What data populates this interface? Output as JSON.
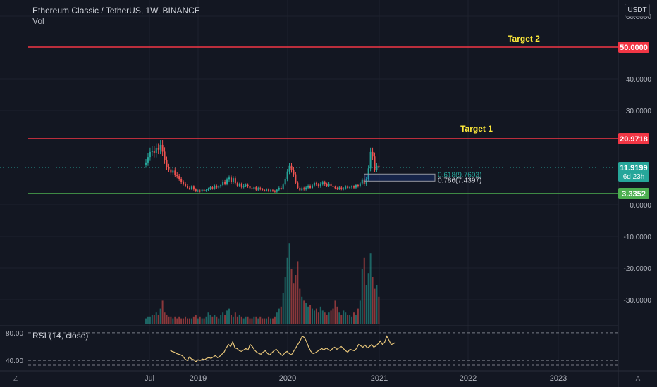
{
  "header": {
    "symbol_title": "Ethereum Classic / TetherUS, 1W, BINANCE",
    "volume_label": "Vol",
    "currency": "USDT"
  },
  "rsi": {
    "label": "RSI (14, close)",
    "upper": "80.00",
    "lower": "40.00"
  },
  "footer": {
    "left_corner": "Z",
    "right_corner": "A"
  },
  "colors": {
    "background": "#131722",
    "grid": "#1e222d",
    "up": "#26a69a",
    "down": "#ef5350",
    "resistance": "#f23645",
    "support": "#4caf50",
    "annotation": "#ffeb3b",
    "rsi_line": "#e8c67a",
    "fib_box": "#2962ff"
  },
  "chart_data": {
    "type": "candlestick",
    "title": "Ethereum Classic / TetherUS, 1W, BINANCE",
    "y_axis_ticks": [
      "60.0000",
      "40.0000",
      "30.0000",
      "0.0000",
      "-10.0000",
      "-20.0000",
      "-30.0000"
    ],
    "x_axis_ticks": [
      "Jul",
      "2019",
      "2020",
      "2021",
      "2022",
      "2023"
    ],
    "price_ylim": [
      -36,
      62
    ],
    "horizontal_lines": [
      {
        "name": "Target 2",
        "label": "Target 2",
        "value": 50.0,
        "value_label": "50.0000",
        "color": "resistance"
      },
      {
        "name": "Target 1",
        "label": "Target 1",
        "value": 20.9718,
        "value_label": "20.9718",
        "color": "resistance"
      },
      {
        "name": "Support",
        "label": "",
        "value": 3.3352,
        "value_label": "3.3352",
        "color": "support"
      }
    ],
    "last_price": {
      "value": 11.9199,
      "value_label": "11.9199",
      "countdown": "6d 23h"
    },
    "fibonacci": [
      {
        "label": "0.618(9.7693)",
        "value": 9.7693
      },
      {
        "label": "0.786(7.4397)",
        "value": 7.4397
      }
    ],
    "weekly_close": [
      13.5,
      15.2,
      16.8,
      17.2,
      16.4,
      18.1,
      17.5,
      19.0,
      16.9,
      14.2,
      12.1,
      11.3,
      10.2,
      10.9,
      9.6,
      9.1,
      8.2,
      7.1,
      6.5,
      5.9,
      5.2,
      4.9,
      5.6,
      4.7,
      4.1,
      4.3,
      4.0,
      4.6,
      4.2,
      4.5,
      4.9,
      5.4,
      5.0,
      5.8,
      5.3,
      5.6,
      6.1,
      7.2,
      6.6,
      7.9,
      8.6,
      7.1,
      8.4,
      6.8,
      5.9,
      6.4,
      5.5,
      5.9,
      6.2,
      5.7,
      5.1,
      4.8,
      5.4,
      4.6,
      5.1,
      4.8,
      4.5,
      4.3,
      4.7,
      4.1,
      4.4,
      4.2,
      3.9,
      4.6,
      5.2,
      4.9,
      6.3,
      8.1,
      10.6,
      12.4,
      11.1,
      9.7,
      6.9,
      5.2,
      4.4,
      5.1,
      4.7,
      5.3,
      5.8,
      5.2,
      6.0,
      6.8,
      6.3,
      5.7,
      6.5,
      7.0,
      6.4,
      5.9,
      6.6,
      5.8,
      5.5,
      5.1,
      4.9,
      5.3,
      4.8,
      5.0,
      5.6,
      5.2,
      5.4,
      5.6,
      5.3,
      6.1,
      5.8,
      6.7,
      7.8,
      6.4,
      8.2,
      11.6,
      16.8,
      15.4,
      11.2,
      12.4,
      11.9
    ],
    "weekly_volume": [
      3,
      4,
      4,
      5,
      5,
      6,
      5,
      8,
      12,
      6,
      5,
      4,
      4,
      3,
      4,
      3,
      4,
      3,
      3,
      4,
      3,
      3,
      3,
      4,
      5,
      3,
      4,
      3,
      3,
      4,
      6,
      5,
      4,
      5,
      4,
      3,
      5,
      6,
      5,
      7,
      8,
      5,
      4,
      6,
      4,
      5,
      4,
      3,
      4,
      4,
      3,
      3,
      4,
      4,
      3,
      4,
      3,
      3,
      3,
      4,
      3,
      3,
      4,
      6,
      8,
      9,
      16,
      24,
      34,
      41,
      28,
      21,
      25,
      32,
      18,
      14,
      12,
      11,
      9,
      10,
      8,
      7,
      8,
      6,
      9,
      7,
      6,
      5,
      6,
      7,
      8,
      12,
      9,
      6,
      5,
      7,
      6,
      5,
      5,
      4,
      6,
      5,
      8,
      12,
      28,
      34,
      20,
      26,
      36,
      24,
      18,
      20,
      14
    ],
    "rsi_values": [
      55,
      53,
      52,
      50,
      49,
      48,
      46,
      42,
      40,
      45,
      42,
      41,
      38,
      41,
      40,
      42,
      41,
      43,
      44,
      43,
      45,
      47,
      44,
      46,
      49,
      52,
      58,
      63,
      60,
      67,
      58,
      57,
      54,
      53,
      55,
      57,
      55,
      63,
      60,
      55,
      52,
      50,
      49,
      52,
      54,
      50,
      48,
      51,
      54,
      56,
      53,
      49,
      47,
      51,
      53,
      50,
      48,
      53,
      58,
      63,
      68,
      75,
      73,
      67,
      59,
      53,
      50,
      51,
      53,
      55,
      57,
      55,
      58,
      56,
      54,
      57,
      59,
      56,
      58,
      60,
      57,
      54,
      52,
      56,
      55,
      54,
      57,
      63,
      61,
      59,
      62,
      58,
      60,
      63,
      59,
      61,
      64,
      68,
      63,
      66,
      75,
      69,
      63,
      64,
      66
    ]
  }
}
